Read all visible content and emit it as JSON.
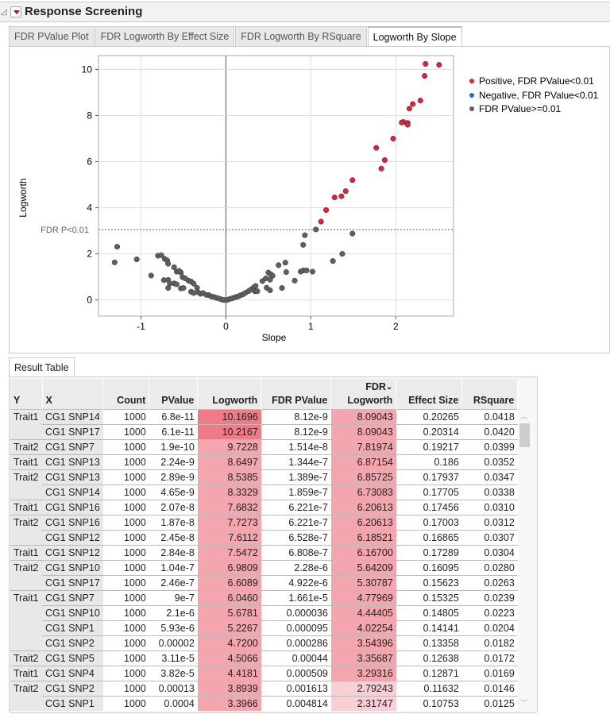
{
  "outline": {
    "title": "Response Screening"
  },
  "tabs": [
    {
      "label": "FDR PValue Plot",
      "active": false
    },
    {
      "label": "FDR Logworth By Effect Size",
      "active": false
    },
    {
      "label": "FDR Logworth By RSquare",
      "active": false
    },
    {
      "label": "Logworth By Slope",
      "active": true
    }
  ],
  "chart_data": {
    "type": "scatter",
    "xlabel": "Slope",
    "ylabel": "Logworth",
    "xlim": [
      -1.5,
      2.68
    ],
    "ylim": [
      -0.7,
      10.6
    ],
    "xticks": [
      "-1",
      "0",
      "1",
      "2"
    ],
    "xtick_values": [
      -1,
      0,
      1,
      2
    ],
    "yticks": [
      "0",
      "2",
      "4",
      "6",
      "8",
      "10"
    ],
    "ytick_values": [
      0,
      2,
      4,
      6,
      8,
      10
    ],
    "grid": true,
    "reference_line": {
      "label": "FDR P<0.01",
      "y": 3.05
    },
    "legend_position": "right",
    "legend": [
      {
        "label": "Positive, FDR PValue<0.01",
        "color": "#e0223a"
      },
      {
        "label": "Negative, FDR PValue<0.01",
        "color": "#2b63e6"
      },
      {
        "label": "FDR PValue>=0.01",
        "color": "#5f5f5f"
      }
    ],
    "series": [
      {
        "name": "Positive, FDR PValue<0.01",
        "color": "#e0223a",
        "points": [
          [
            2.35,
            10.24
          ],
          [
            2.51,
            10.2
          ],
          [
            2.34,
            9.72
          ],
          [
            2.29,
            8.65
          ],
          [
            2.2,
            8.5
          ],
          [
            2.16,
            8.3
          ],
          [
            2.09,
            7.72
          ],
          [
            2.14,
            7.68
          ],
          [
            2.07,
            7.7
          ],
          [
            2.14,
            7.6
          ],
          [
            1.97,
            7.0
          ],
          [
            1.77,
            6.6
          ],
          [
            1.87,
            6.07
          ],
          [
            1.83,
            5.7
          ],
          [
            1.49,
            5.2
          ],
          [
            1.41,
            4.72
          ],
          [
            1.36,
            4.5
          ],
          [
            1.28,
            4.45
          ],
          [
            1.18,
            3.9
          ],
          [
            1.12,
            3.4
          ]
        ]
      },
      {
        "name": "Negative, FDR PValue<0.01",
        "color": "#2b63e6",
        "points": []
      },
      {
        "name": "FDR PValue>=0.01",
        "color": "#5f5f5f",
        "points": [
          [
            -1.28,
            2.31
          ],
          [
            -1.31,
            1.63
          ],
          [
            -1.05,
            1.76
          ],
          [
            -0.88,
            1.06
          ],
          [
            -0.8,
            1.92
          ],
          [
            -0.76,
            1.94
          ],
          [
            -0.72,
            1.78
          ],
          [
            -0.69,
            1.71
          ],
          [
            -0.68,
            1.57
          ],
          [
            -0.61,
            1.42
          ],
          [
            -0.58,
            1.23
          ],
          [
            -0.53,
            1.19
          ],
          [
            -0.55,
            1.26
          ],
          [
            -0.51,
            0.99
          ],
          [
            -0.48,
            0.94
          ],
          [
            -0.44,
            0.84
          ],
          [
            -0.41,
            0.8
          ],
          [
            -0.38,
            0.71
          ],
          [
            -0.73,
            0.86
          ],
          [
            -0.68,
            0.87
          ],
          [
            -0.66,
            0.71
          ],
          [
            -0.61,
            0.72
          ],
          [
            -0.58,
            0.68
          ],
          [
            -0.68,
            0.52
          ],
          [
            -0.53,
            0.5
          ],
          [
            -0.5,
            0.52
          ],
          [
            -0.41,
            0.36
          ],
          [
            -0.38,
            0.3
          ],
          [
            -0.34,
            0.53
          ],
          [
            -0.33,
            0.34
          ],
          [
            -0.3,
            0.27
          ],
          [
            -0.27,
            0.3
          ],
          [
            -0.23,
            0.22
          ],
          [
            -0.2,
            0.21
          ],
          [
            -0.17,
            0.15
          ],
          [
            -0.14,
            0.13
          ],
          [
            -0.11,
            0.09
          ],
          [
            -0.08,
            0.06
          ],
          [
            -0.05,
            0.02
          ],
          [
            -0.02,
            0.0
          ],
          [
            0.02,
            0.01
          ],
          [
            0.05,
            0.05
          ],
          [
            0.08,
            0.08
          ],
          [
            0.11,
            0.12
          ],
          [
            0.14,
            0.15
          ],
          [
            0.17,
            0.2
          ],
          [
            0.2,
            0.24
          ],
          [
            0.23,
            0.31
          ],
          [
            0.27,
            0.39
          ],
          [
            0.3,
            0.47
          ],
          [
            0.33,
            0.55
          ],
          [
            0.35,
            0.61
          ],
          [
            0.34,
            0.38
          ],
          [
            0.37,
            0.38
          ],
          [
            0.43,
            0.82
          ],
          [
            0.47,
            0.94
          ],
          [
            0.5,
            1.19
          ],
          [
            0.53,
            1.11
          ],
          [
            0.55,
            1.05
          ],
          [
            0.52,
            0.88
          ],
          [
            0.48,
            0.53
          ],
          [
            0.52,
            0.42
          ],
          [
            0.62,
            1.51
          ],
          [
            0.7,
            1.62
          ],
          [
            0.71,
            1.21
          ],
          [
            0.66,
            0.52
          ],
          [
            0.81,
            0.84
          ],
          [
            0.88,
            1.23
          ],
          [
            0.91,
            1.28
          ],
          [
            0.95,
            1.28
          ],
          [
            1.02,
            1.23
          ],
          [
            0.91,
            2.39
          ],
          [
            0.93,
            2.81
          ],
          [
            1.06,
            3.06
          ],
          [
            1.26,
            1.69
          ],
          [
            1.37,
            2.0
          ],
          [
            1.49,
            2.88
          ]
        ]
      }
    ]
  },
  "result_table": {
    "tab_label": "Result Table",
    "headers": [
      "Y",
      "X",
      "Count",
      "PValue",
      "Logworth",
      "FDR PValue",
      "FDR Logworth",
      "Effect Size",
      "RSquare"
    ],
    "sort_indicator": "⌄",
    "highlight_colors": {
      "strong": "#ef7b88",
      "medium": "#f4a6ae",
      "light": "#f8cfd4"
    },
    "rows": [
      [
        "Trait1",
        "CG1 SNP14",
        "1000",
        "6.8e-11",
        "10.1696",
        "8.12e-9",
        "8.09043",
        "0.20265",
        "0.0418"
      ],
      [
        "",
        "CG1 SNP17",
        "1000",
        "6.1e-11",
        "10.2167",
        "8.12e-9",
        "8.09043",
        "0.20314",
        "0.0420"
      ],
      [
        "Trait2",
        "CG1 SNP7",
        "1000",
        "1.9e-10",
        "9.7228",
        "1.514e-8",
        "7.81974",
        "0.19217",
        "0.0399"
      ],
      [
        "Trait1",
        "CG1 SNP13",
        "1000",
        "2.24e-9",
        "8.6497",
        "1.344e-7",
        "6.87154",
        "0.186",
        "0.0352"
      ],
      [
        "Trait2",
        "CG1 SNP13",
        "1000",
        "2.89e-9",
        "8.5385",
        "1.389e-7",
        "6.85725",
        "0.17937",
        "0.0347"
      ],
      [
        "",
        "CG1 SNP14",
        "1000",
        "4.65e-9",
        "8.3329",
        "1.859e-7",
        "6.73083",
        "0.17705",
        "0.0338"
      ],
      [
        "Trait1",
        "CG1 SNP16",
        "1000",
        "2.07e-8",
        "7.6832",
        "6.221e-7",
        "6.20613",
        "0.17456",
        "0.0310"
      ],
      [
        "Trait2",
        "CG1 SNP16",
        "1000",
        "1.87e-8",
        "7.7273",
        "6.221e-7",
        "6.20613",
        "0.17003",
        "0.0312"
      ],
      [
        "",
        "CG1 SNP12",
        "1000",
        "2.45e-8",
        "7.6112",
        "6.528e-7",
        "6.18521",
        "0.16865",
        "0.0307"
      ],
      [
        "Trait1",
        "CG1 SNP12",
        "1000",
        "2.84e-8",
        "7.5472",
        "6.808e-7",
        "6.16700",
        "0.17289",
        "0.0304"
      ],
      [
        "Trait2",
        "CG1 SNP10",
        "1000",
        "1.04e-7",
        "6.9809",
        "2.28e-6",
        "5.64209",
        "0.16095",
        "0.0280"
      ],
      [
        "",
        "CG1 SNP17",
        "1000",
        "2.46e-7",
        "6.6089",
        "4.922e-6",
        "5.30787",
        "0.15623",
        "0.0263"
      ],
      [
        "Trait1",
        "CG1 SNP7",
        "1000",
        "9e-7",
        "6.0460",
        "1.661e-5",
        "4.77969",
        "0.15325",
        "0.0239"
      ],
      [
        "",
        "CG1 SNP10",
        "1000",
        "2.1e-6",
        "5.6781",
        "0.000036",
        "4.44405",
        "0.14805",
        "0.0223"
      ],
      [
        "",
        "CG1 SNP1",
        "1000",
        "5.93e-6",
        "5.2267",
        "0.000095",
        "4.02254",
        "0.14141",
        "0.0204"
      ],
      [
        "",
        "CG1 SNP2",
        "1000",
        "0.00002",
        "4.7200",
        "0.000286",
        "3.54396",
        "0.13358",
        "0.0182"
      ],
      [
        "Trait2",
        "CG1 SNP5",
        "1000",
        "3.11e-5",
        "4.5066",
        "0.00044",
        "3.35687",
        "0.12638",
        "0.0172"
      ],
      [
        "Trait1",
        "CG1 SNP4",
        "1000",
        "3.82e-5",
        "4.4181",
        "0.000509",
        "3.29316",
        "0.12871",
        "0.0169"
      ],
      [
        "Trait2",
        "CG1 SNP2",
        "1000",
        "0.00013",
        "3.8939",
        "0.001613",
        "2.79243",
        "0.11632",
        "0.0146"
      ],
      [
        "",
        "CG1 SNP1",
        "1000",
        "0.0004",
        "3.3966",
        "0.004814",
        "2.31747",
        "0.10753",
        "0.0125"
      ]
    ]
  }
}
